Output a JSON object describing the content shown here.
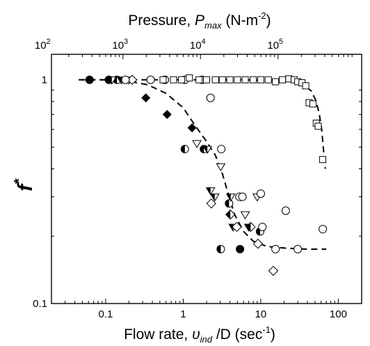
{
  "chart_data": {
    "type": "scatter",
    "title": "",
    "ylabel": "f*",
    "ylabel_parts": {
      "main": "f",
      "sup": "*"
    },
    "xlabel": "Flow rate, υind /D (sec-1)",
    "xlabel_parts": {
      "main": "Flow rate, ",
      "var": "υ",
      "sub": "ind",
      "rest": " /D (sec",
      "sup": "-1",
      "end": ")"
    },
    "top_xlabel": "Pressure, Pmax (N-m-2)",
    "top_xlabel_parts": {
      "main": "Pressure, ",
      "var": "P",
      "sub": "max",
      "rest": " (N-m",
      "sup": "-2",
      "end": ")"
    },
    "xscale": "log",
    "yscale": "log",
    "xlim": [
      0.02,
      200
    ],
    "ylim": [
      0.1,
      1.3
    ],
    "grid": false,
    "legend": "none",
    "x_ticks": [
      {
        "value": 0.1,
        "label": "0.1"
      },
      {
        "value": 1,
        "label": "1"
      },
      {
        "value": 10,
        "label": "10"
      },
      {
        "value": 100,
        "label": "100"
      }
    ],
    "y_ticks": [
      {
        "value": 0.1,
        "label": "0.1"
      },
      {
        "value": 1,
        "label": "1"
      }
    ],
    "top_x_ticks": [
      {
        "value": 0.0167,
        "label": "10",
        "sup": "2"
      },
      {
        "value": 0.167,
        "label": "10",
        "sup": "3"
      },
      {
        "value": 1.67,
        "label": "10",
        "sup": "4"
      },
      {
        "value": 16.7,
        "label": "10",
        "sup": "5"
      }
    ],
    "series": [
      {
        "marker": "filled-circle",
        "points": [
          [
            0.062,
            1.0
          ],
          [
            0.11,
            1.0
          ]
        ]
      },
      {
        "marker": "half-filled-circle",
        "points": [
          [
            0.14,
            1.0
          ],
          [
            1.05,
            0.49
          ],
          [
            1.85,
            0.49
          ],
          [
            3.05,
            0.175
          ],
          [
            3.9,
            0.28
          ],
          [
            9.8,
            0.21
          ]
        ]
      },
      {
        "marker": "filled-circle-single",
        "points": [
          [
            5.4,
            0.175
          ]
        ]
      },
      {
        "marker": "half-filled-triangle-down",
        "points": [
          [
            0.12,
            1.0
          ],
          [
            0.16,
            1.0
          ],
          [
            2.05,
            0.49
          ],
          [
            2.25,
            0.32
          ],
          [
            2.55,
            0.3
          ],
          [
            4.1,
            0.3
          ],
          [
            4.4,
            0.22
          ],
          [
            7.0,
            0.22
          ]
        ]
      },
      {
        "marker": "filled-diamond",
        "points": [
          [
            0.33,
            0.83
          ],
          [
            0.62,
            0.7
          ],
          [
            1.3,
            0.61
          ]
        ]
      },
      {
        "marker": "half-filled-diamond",
        "points": [
          [
            4.05,
            0.25
          ],
          [
            7.4,
            0.22
          ]
        ]
      },
      {
        "marker": "open-triangle-down",
        "points": [
          [
            0.2,
            1.0
          ],
          [
            1.5,
            0.52
          ],
          [
            3.05,
            0.41
          ],
          [
            5.6,
            0.3
          ],
          [
            6.3,
            0.25
          ],
          [
            9.0,
            0.3
          ]
        ]
      },
      {
        "marker": "open-diamond",
        "points": [
          [
            0.22,
            1.0
          ],
          [
            2.3,
            0.28
          ],
          [
            4.9,
            0.22
          ],
          [
            9.2,
            0.185
          ],
          [
            14.5,
            0.14
          ]
        ]
      },
      {
        "marker": "open-circle",
        "points": [
          [
            0.18,
            1.0
          ],
          [
            0.38,
            1.0
          ],
          [
            0.58,
            1.0
          ],
          [
            1.05,
            1.0
          ],
          [
            1.75,
            1.0
          ],
          [
            2.25,
            0.83
          ],
          [
            3.1,
            0.49
          ],
          [
            5.3,
            0.3
          ],
          [
            5.8,
            0.3
          ],
          [
            10.0,
            0.31
          ],
          [
            10.5,
            0.22
          ],
          [
            15.5,
            0.175
          ],
          [
            21.0,
            0.26
          ],
          [
            30.0,
            0.175
          ],
          [
            63.0,
            0.215
          ]
        ]
      },
      {
        "marker": "open-square",
        "points": [
          [
            0.55,
            1.0
          ],
          [
            0.75,
            1.0
          ],
          [
            0.95,
            1.0
          ],
          [
            1.2,
            1.02
          ],
          [
            1.6,
            1.0
          ],
          [
            2.0,
            1.0
          ],
          [
            2.6,
            1.0
          ],
          [
            3.2,
            1.0
          ],
          [
            4.0,
            1.0
          ],
          [
            5.0,
            1.0
          ],
          [
            6.3,
            1.0
          ],
          [
            8.0,
            1.0
          ],
          [
            10.0,
            1.0
          ],
          [
            12.5,
            1.0
          ],
          [
            15.5,
            0.98
          ],
          [
            19.0,
            1.0
          ],
          [
            23.0,
            1.01
          ],
          [
            27.0,
            1.0
          ],
          [
            30.0,
            0.98
          ],
          [
            34.0,
            0.97
          ],
          [
            38.0,
            0.94
          ],
          [
            42.0,
            0.79
          ],
          [
            47.0,
            0.78
          ],
          [
            52.0,
            0.64
          ],
          [
            55.0,
            0.62
          ],
          [
            63.0,
            0.44
          ]
        ]
      }
    ],
    "fit_curves": [
      {
        "style": "dashed",
        "points": [
          [
            0.045,
            1.0
          ],
          [
            0.1,
            1.0
          ],
          [
            0.2,
            0.985
          ],
          [
            0.35,
            0.95
          ],
          [
            0.6,
            0.87
          ],
          [
            1.0,
            0.75
          ],
          [
            1.4,
            0.63
          ],
          [
            2.0,
            0.53
          ],
          [
            2.6,
            0.46
          ],
          [
            3.2,
            0.38
          ],
          [
            3.8,
            0.31
          ],
          [
            4.6,
            0.25
          ],
          [
            6.0,
            0.21
          ],
          [
            8.0,
            0.19
          ],
          [
            12.0,
            0.18
          ],
          [
            20.0,
            0.177
          ],
          [
            40.0,
            0.175
          ],
          [
            70.0,
            0.175
          ]
        ]
      },
      {
        "style": "dashed",
        "points": [
          [
            0.045,
            1.0
          ],
          [
            1.0,
            1.0
          ],
          [
            5.0,
            1.0
          ],
          [
            15.0,
            0.995
          ],
          [
            25.0,
            0.98
          ],
          [
            35.0,
            0.955
          ],
          [
            45.0,
            0.89
          ],
          [
            52.0,
            0.8
          ],
          [
            57.0,
            0.7
          ],
          [
            61.0,
            0.6
          ],
          [
            64.0,
            0.5
          ],
          [
            66.5,
            0.43
          ],
          [
            68.0,
            0.4
          ]
        ]
      }
    ]
  }
}
